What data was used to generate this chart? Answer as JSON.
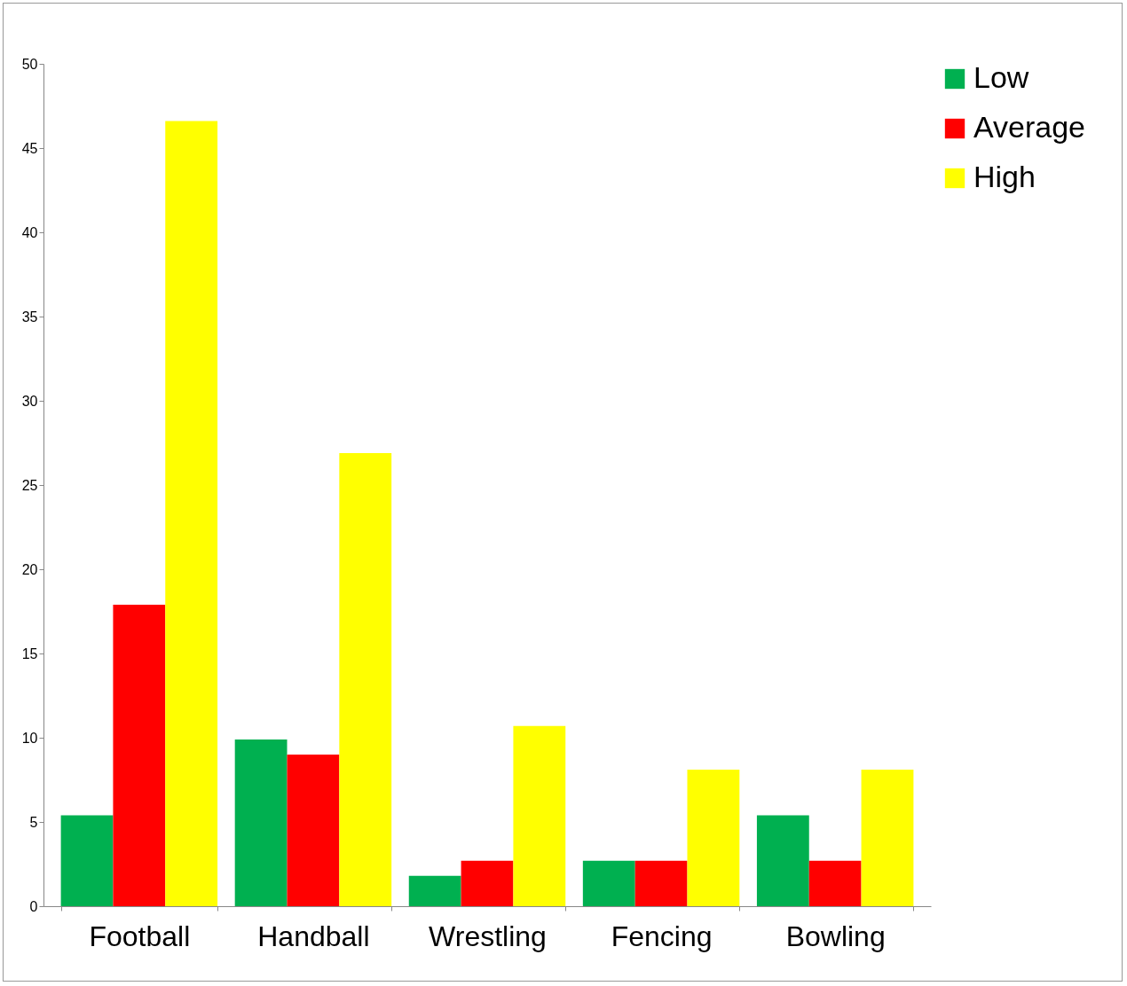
{
  "chart_data": {
    "type": "bar",
    "categories": [
      "Football",
      "Handball",
      "Wrestling",
      "Fencing",
      "Bowling"
    ],
    "series": [
      {
        "name": "Low",
        "color": "#00b050",
        "values": [
          5.4,
          9.9,
          1.8,
          2.7,
          5.4
        ]
      },
      {
        "name": "Average",
        "color": "#ff0000",
        "values": [
          17.9,
          9.0,
          2.7,
          2.7,
          2.7
        ]
      },
      {
        "name": "High",
        "color": "#ffff00",
        "values": [
          46.6,
          26.9,
          10.7,
          8.1,
          8.1
        ]
      }
    ],
    "ylim": [
      0,
      50
    ],
    "yticks": [
      0,
      5,
      10,
      15,
      20,
      25,
      30,
      35,
      40,
      45,
      50
    ],
    "grid": false,
    "legend": "right"
  }
}
